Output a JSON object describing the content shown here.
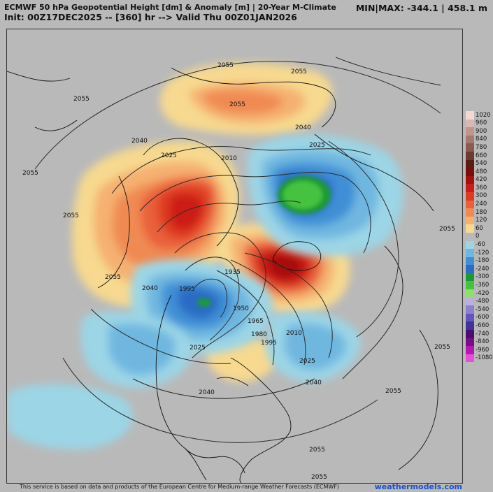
{
  "header": {
    "title": "ECMWF 50 hPa Geopotential Height [dm] & Anomaly [m] | 20-Year M-Climate",
    "subtitle": "Init: 00Z17DEC2025 -- [360] hr --> Valid Thu 00Z01JAN2026",
    "minmax": "MIN|MAX: -344.1 | 458.1 m"
  },
  "footer": {
    "credit": "This service is based on data and products of the European Centre for Medium-range Weather Forecasts (ECMWF)",
    "brand": "weathermodels.com"
  },
  "colorbar": [
    {
      "label": "1020",
      "color": "#f2d9d6"
    },
    {
      "label": "960",
      "color": "#d9b7b2"
    },
    {
      "label": "900",
      "color": "#bf958e"
    },
    {
      "label": "840",
      "color": "#a7786f"
    },
    {
      "label": "780",
      "color": "#8e5a50"
    },
    {
      "label": "660",
      "color": "#6f3b31"
    },
    {
      "label": "540",
      "color": "#5a1d14"
    },
    {
      "label": "480",
      "color": "#7a0d0b"
    },
    {
      "label": "420",
      "color": "#a5100e"
    },
    {
      "label": "360",
      "color": "#cc1b18"
    },
    {
      "label": "300",
      "color": "#df3a24"
    },
    {
      "label": "240",
      "color": "#e9603a"
    },
    {
      "label": "180",
      "color": "#f08a52"
    },
    {
      "label": "120",
      "color": "#f5b171"
    },
    {
      "label": "60",
      "color": "#f7d98f"
    },
    {
      "label": "0",
      "color": "#b9b9b9"
    },
    {
      "label": "-60",
      "color": "#9bd5e6"
    },
    {
      "label": "-120",
      "color": "#6fb7e0"
    },
    {
      "label": "-180",
      "color": "#3f8fd6"
    },
    {
      "label": "-240",
      "color": "#2c6cc4"
    },
    {
      "label": "-300",
      "color": "#1a9b32"
    },
    {
      "label": "-360",
      "color": "#45c23f"
    },
    {
      "label": "-420",
      "color": "#8ee06b"
    },
    {
      "label": "-480",
      "color": "#b9b0e0"
    },
    {
      "label": "-540",
      "color": "#8f7fd1"
    },
    {
      "label": "-600",
      "color": "#6554bb"
    },
    {
      "label": "-660",
      "color": "#40329a"
    },
    {
      "label": "-740",
      "color": "#4a0f6e"
    },
    {
      "label": "-840",
      "color": "#7c0d88"
    },
    {
      "label": "-960",
      "color": "#b51ab0"
    },
    {
      "label": "-1080",
      "color": "#e84fd8"
    }
  ],
  "contour_labels": [
    "2055",
    "2055",
    "2040",
    "2055",
    "2055",
    "2055",
    "2040",
    "2025",
    "2010",
    "2055",
    "2025",
    "2040",
    "2055",
    "1995",
    "1935",
    "1950",
    "1965",
    "1980",
    "1995",
    "2010",
    "2025",
    "2040",
    "2025",
    "2040",
    "2055",
    "2055",
    "2055",
    "2055",
    "2055"
  ]
}
